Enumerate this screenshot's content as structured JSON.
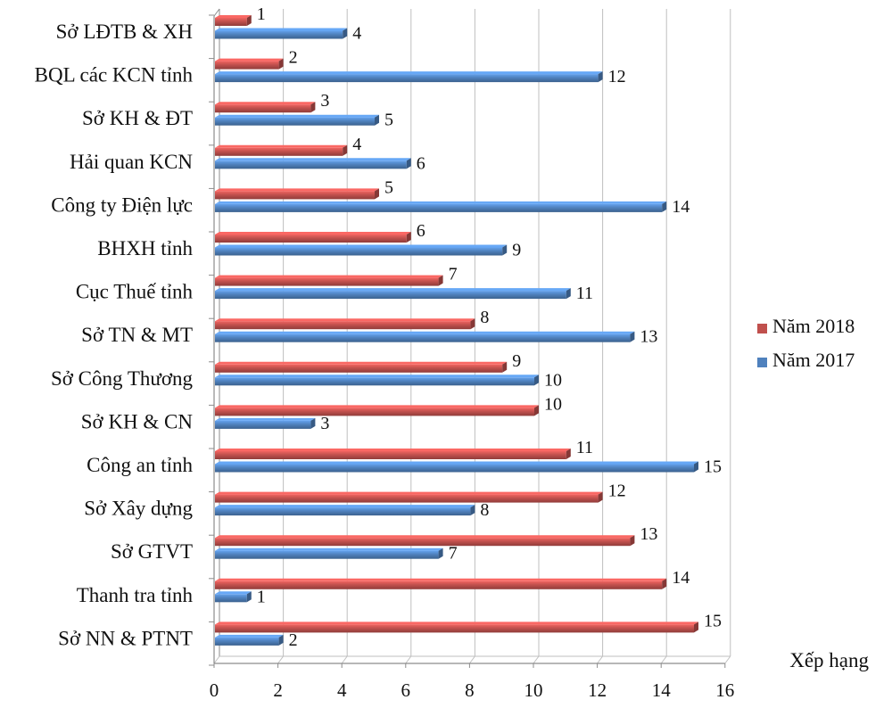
{
  "chart_data": {
    "type": "bar",
    "orientation": "horizontal",
    "categories": [
      "Sở LĐTB & XH",
      "BQL các KCN tỉnh",
      "Sở KH & ĐT",
      "Hải quan KCN",
      "Công ty Điện lực",
      "BHXH tỉnh",
      "Cục Thuế tỉnh",
      "Sở TN & MT",
      "Sở Công Thương",
      "Sở KH & CN",
      "Công an tỉnh",
      "Sở Xây dựng",
      "Sở GTVT",
      "Thanh tra tỉnh",
      "Sở NN & PTNT"
    ],
    "series": [
      {
        "name": "Năm 2018",
        "color": "#c0504d",
        "values": [
          1,
          2,
          3,
          4,
          5,
          6,
          7,
          8,
          9,
          10,
          11,
          12,
          13,
          14,
          15
        ]
      },
      {
        "name": "Năm 2017",
        "color": "#4f81bd",
        "values": [
          4,
          12,
          5,
          6,
          14,
          9,
          11,
          13,
          10,
          3,
          15,
          8,
          7,
          1,
          2
        ]
      }
    ],
    "xlabel": "Xếp hạng",
    "xlim": [
      0,
      16
    ],
    "xticks": [
      0,
      2,
      4,
      6,
      8,
      10,
      12,
      14,
      16
    ],
    "legend": "right"
  }
}
